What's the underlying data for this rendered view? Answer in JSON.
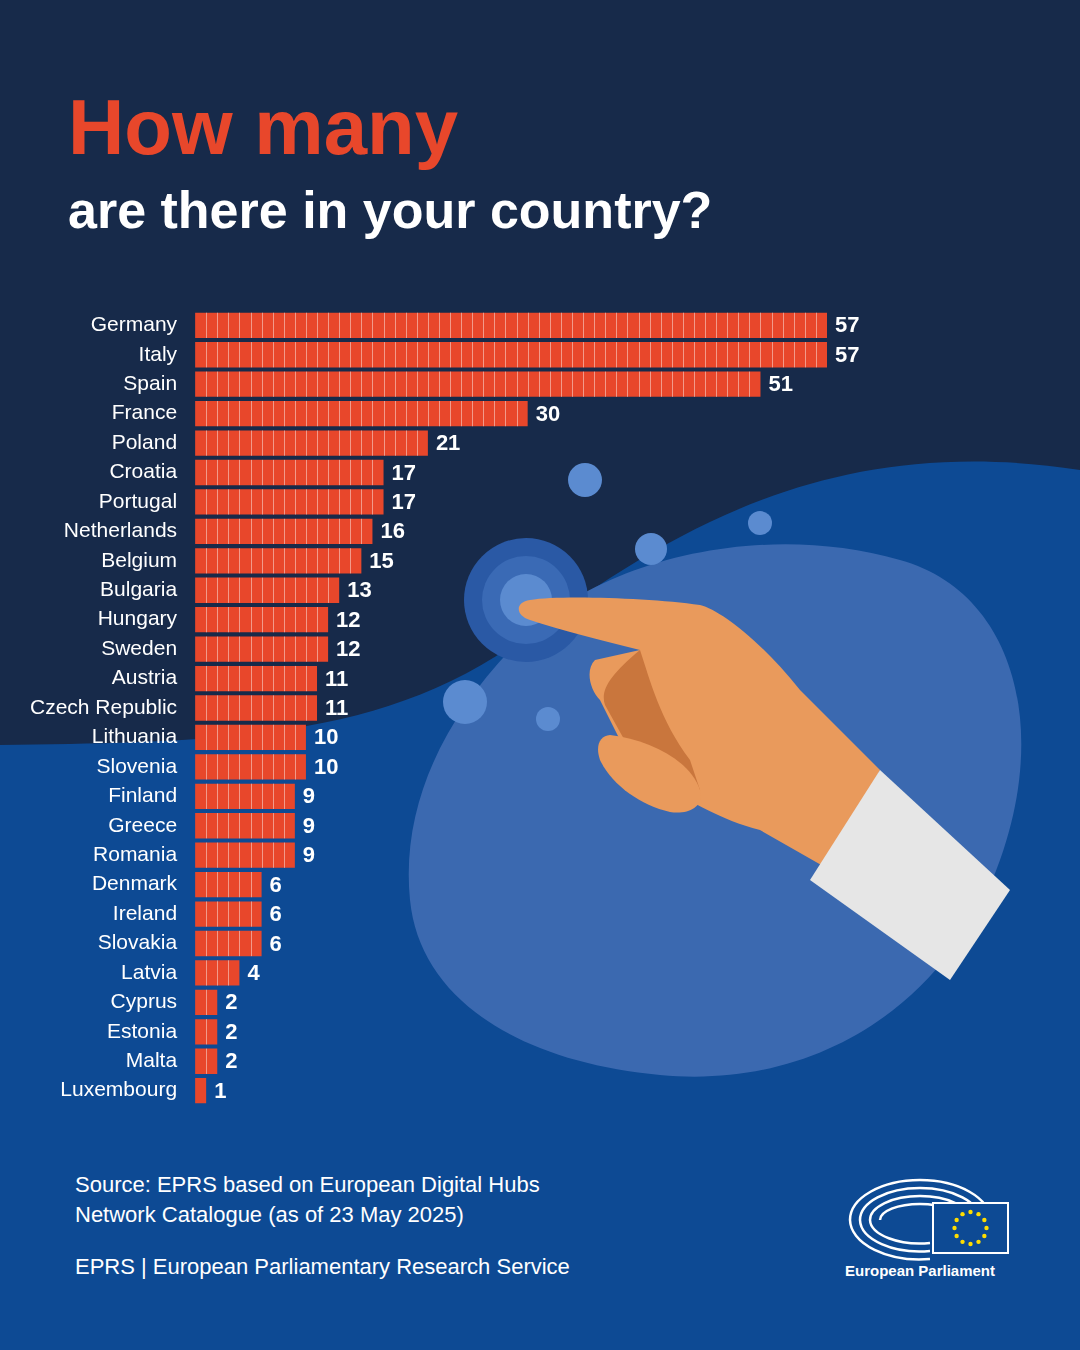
{
  "chart_data": {
    "type": "bar",
    "title": "How many",
    "subtitle": "are there in your country?",
    "orientation": "horizontal",
    "categories": [
      "Germany",
      "Italy",
      "Spain",
      "France",
      "Poland",
      "Croatia",
      "Portugal",
      "Netherlands",
      "Belgium",
      "Bulgaria",
      "Hungary",
      "Sweden",
      "Austria",
      "Czech Republic",
      "Lithuania",
      "Slovenia",
      "Finland",
      "Greece",
      "Romania",
      "Denmark",
      "Ireland",
      "Slovakia",
      "Latvia",
      "Cyprus",
      "Estonia",
      "Malta",
      "Luxembourg"
    ],
    "values": [
      57,
      57,
      51,
      30,
      21,
      17,
      17,
      16,
      15,
      13,
      12,
      12,
      11,
      11,
      10,
      10,
      9,
      9,
      9,
      6,
      6,
      6,
      4,
      2,
      2,
      2,
      1
    ],
    "color": "#e8472b",
    "xlim": [
      0,
      57
    ],
    "data_labels": true,
    "tick_labels": "y",
    "grid": false,
    "source": "Source: EPRS based on European Digital Hubs Network Catalogue (as of 23 May 2025)"
  },
  "footer": {
    "credit": "EPRS | European Parliamentary Research Service",
    "logo": "European Parliament"
  }
}
